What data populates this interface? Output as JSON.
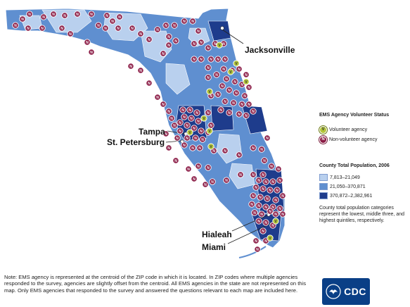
{
  "cities": {
    "jacksonville": "Jacksonville",
    "tampa": "Tampa",
    "st_petersburg": "St. Petersburg",
    "hialeah": "Hialeah",
    "miami": "Miami"
  },
  "legend": {
    "volunteer_title": "EMS Agency Volunteer Status",
    "volunteer_label": "Volunteer agency",
    "nonvolunteer_label": "Non-volunteer agency",
    "volunteer_glyph": "V",
    "nonvolunteer_glyph": "N",
    "population_title": "County Total Population, 2006",
    "ranges": [
      "7,813–21,049",
      "21,050–370,871",
      "370,872–2,382,961"
    ],
    "population_note": "County total population categories represent the lowest, middle three, and highest quintiles, respectively."
  },
  "colors": {
    "low": "#b9d0ee",
    "mid": "#5f8fd0",
    "high": "#1e3c8c",
    "volunteer": "#b3c53a",
    "nonvolunteer": "#8a1a44"
  },
  "note": "Note: EMS agency is represented at the centroid of the ZIP code in which it is located. In ZIP codes where multiple agencies responded to the survey, agencies are slightly offset from the centroid. All EMS agencies in the state are not represented on this map. Only EMS agencies that responded to the survey and answered the questions relevant to each map are included here.",
  "logo_text": "CDC"
}
